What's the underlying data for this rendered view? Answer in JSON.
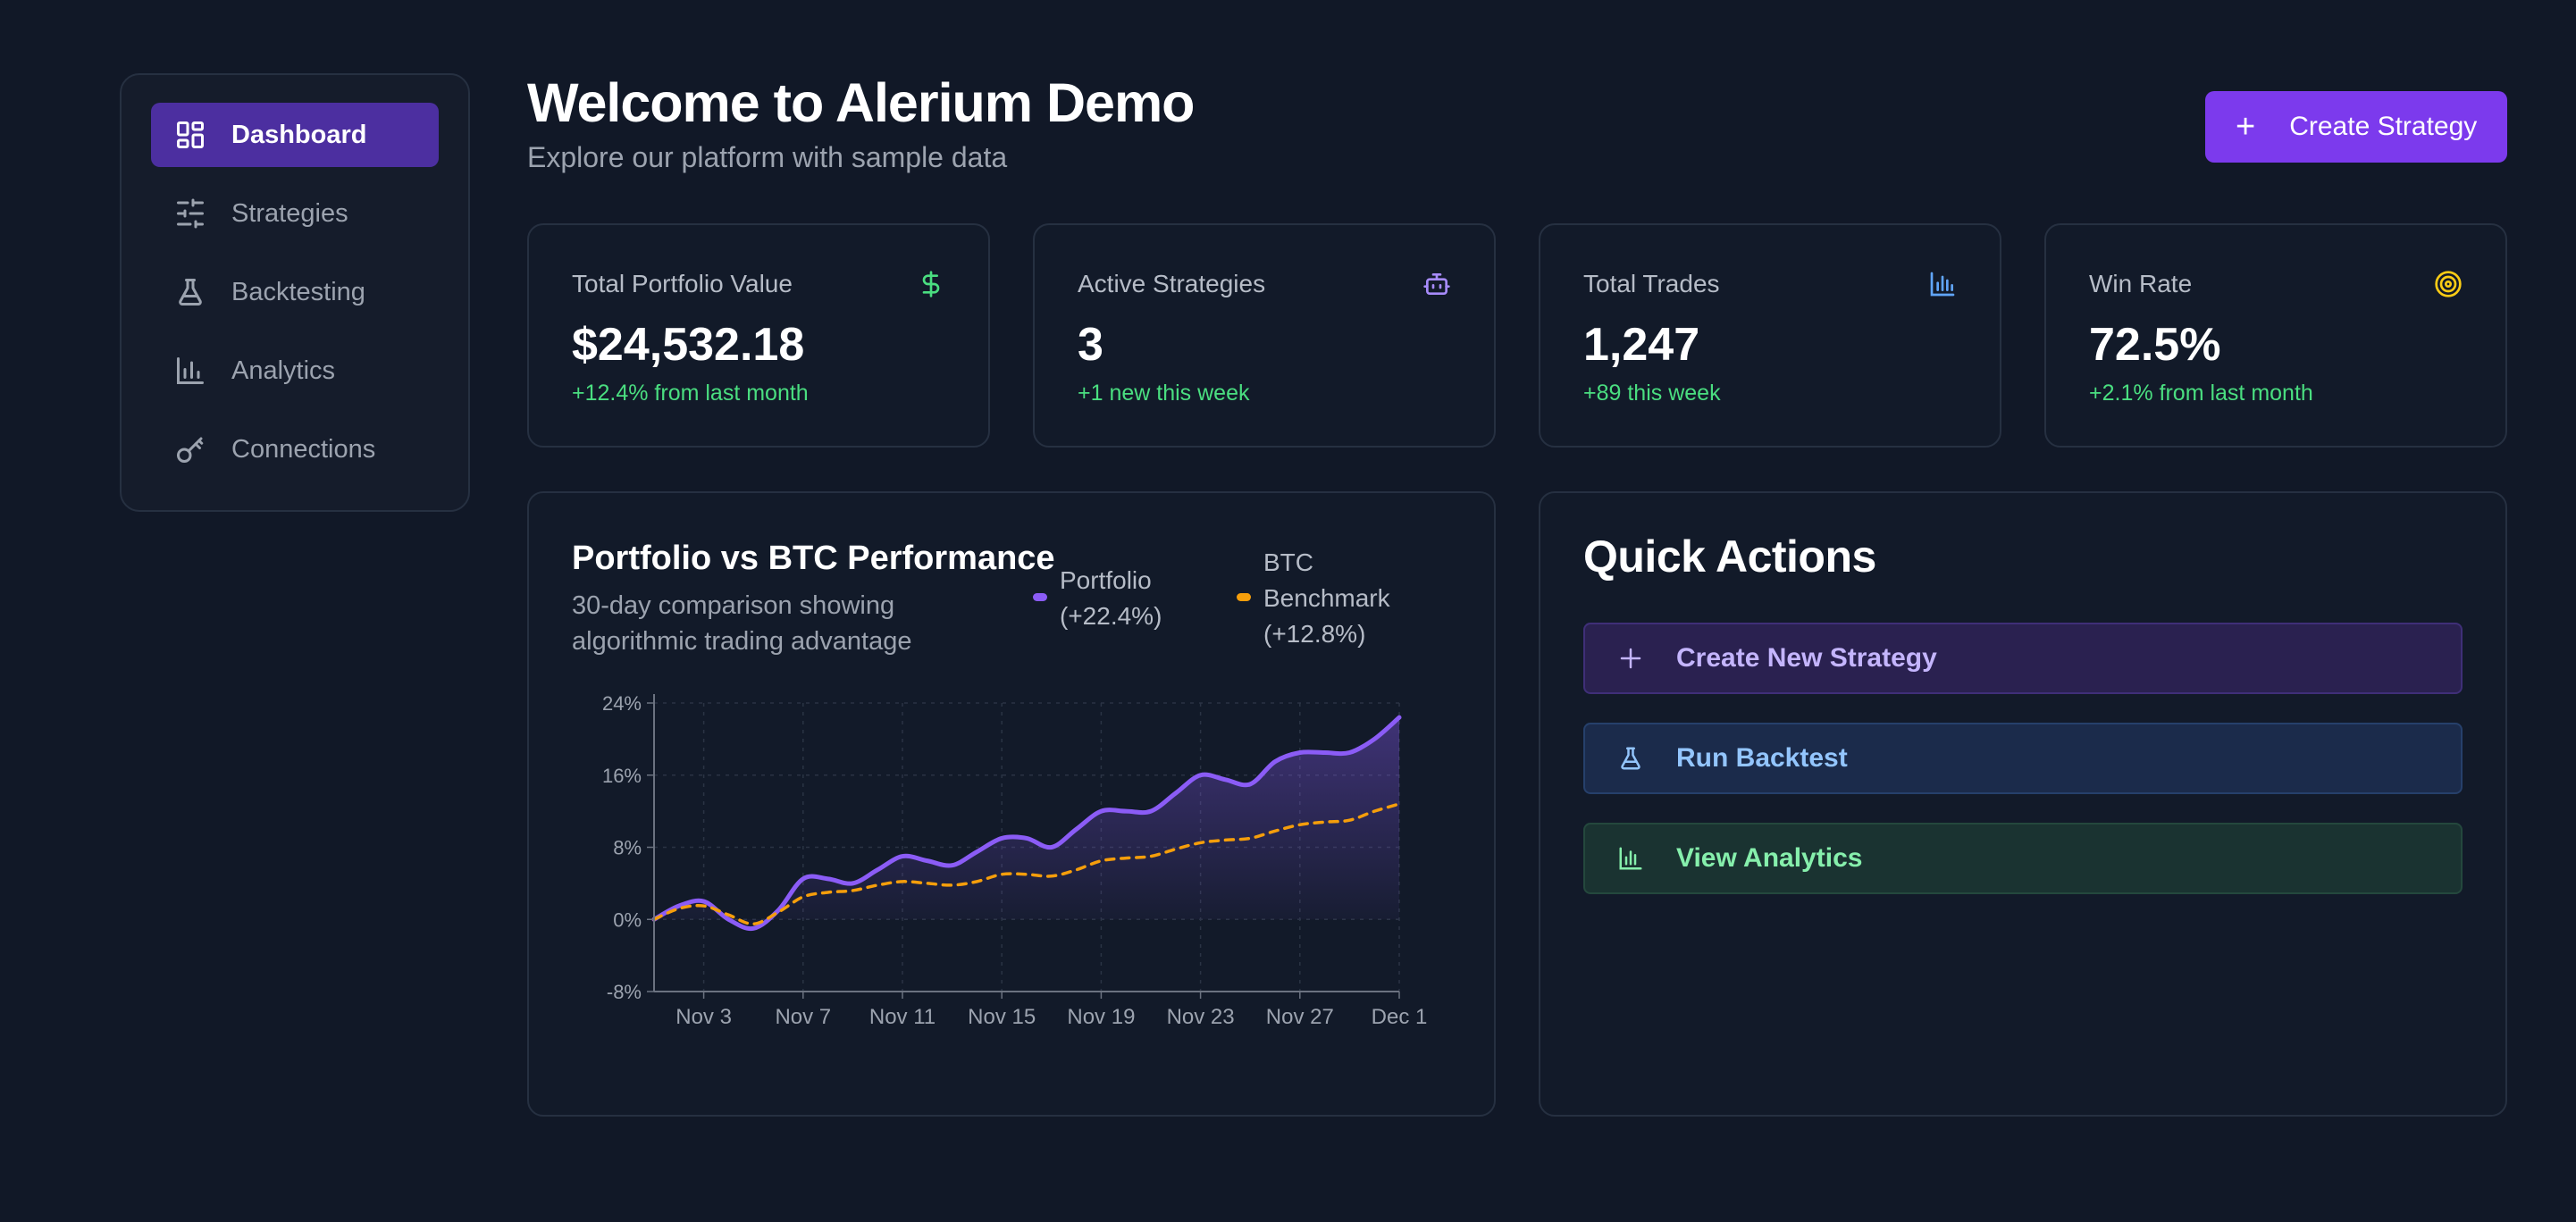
{
  "sidebar": {
    "items": [
      {
        "label": "Dashboard",
        "icon": "dashboard-icon",
        "active": true
      },
      {
        "label": "Strategies",
        "icon": "sliders-icon",
        "active": false
      },
      {
        "label": "Backtesting",
        "icon": "flask-icon",
        "active": false
      },
      {
        "label": "Analytics",
        "icon": "bar-chart-icon",
        "active": false
      },
      {
        "label": "Connections",
        "icon": "key-icon",
        "active": false
      }
    ]
  },
  "header": {
    "title": "Welcome to Alerium Demo",
    "subtitle": "Explore our platform with sample data",
    "create_button": "Create Strategy"
  },
  "stats": [
    {
      "label": "Total Portfolio Value",
      "value": "$24,532.18",
      "delta": "+12.4% from last month",
      "icon": "dollar-icon",
      "icon_color": "#4ade80"
    },
    {
      "label": "Active Strategies",
      "value": "3",
      "delta": "+1 new this week",
      "icon": "bot-icon",
      "icon_color": "#a78bfa"
    },
    {
      "label": "Total Trades",
      "value": "1,247",
      "delta": "+89 this week",
      "icon": "bar-chart-icon",
      "icon_color": "#60a5fa"
    },
    {
      "label": "Win Rate",
      "value": "72.5%",
      "delta": "+2.1% from last month",
      "icon": "target-icon",
      "icon_color": "#facc15"
    }
  ],
  "chart_card": {
    "title": "Portfolio vs BTC Performance",
    "subtitle": "30-day comparison showing algorithmic trading advantage",
    "legend": [
      {
        "label": "Portfolio (+22.4%)",
        "color": "#8b5cf6"
      },
      {
        "label": "BTC Benchmark (+12.8%)",
        "color": "#f59e0b"
      }
    ]
  },
  "chart_data": {
    "type": "area",
    "xlabel": "",
    "ylabel": "",
    "x_ticks": [
      "Nov 3",
      "Nov 7",
      "Nov 11",
      "Nov 15",
      "Nov 19",
      "Nov 23",
      "Nov 27",
      "Dec 1"
    ],
    "y_ticks": [
      "24%",
      "16%",
      "8%",
      "0%",
      "-8%"
    ],
    "ylim": [
      -8,
      24
    ],
    "x": [
      "Nov 1",
      "Nov 2",
      "Nov 3",
      "Nov 4",
      "Nov 5",
      "Nov 6",
      "Nov 7",
      "Nov 8",
      "Nov 9",
      "Nov 10",
      "Nov 11",
      "Nov 12",
      "Nov 13",
      "Nov 14",
      "Nov 15",
      "Nov 16",
      "Nov 17",
      "Nov 18",
      "Nov 19",
      "Nov 20",
      "Nov 21",
      "Nov 22",
      "Nov 23",
      "Nov 24",
      "Nov 25",
      "Nov 26",
      "Nov 27",
      "Nov 28",
      "Nov 29",
      "Nov 30",
      "Dec 1"
    ],
    "series": [
      {
        "name": "Portfolio (+22.4%)",
        "color": "#8b5cf6",
        "style": "solid-area",
        "values": [
          0,
          1.5,
          2,
          0,
          -1,
          1,
          4.5,
          4.5,
          4,
          5.5,
          7,
          6.5,
          6,
          7.5,
          9,
          9,
          8,
          10,
          12,
          12,
          12,
          14,
          16,
          15.5,
          15,
          17.5,
          18.5,
          18.5,
          18.5,
          20,
          22.4
        ]
      },
      {
        "name": "BTC Benchmark (+12.8%)",
        "color": "#f59e0b",
        "style": "dashed",
        "values": [
          0,
          1.2,
          1.5,
          0.5,
          -0.5,
          0.8,
          2.5,
          3,
          3.2,
          3.8,
          4.2,
          4,
          3.8,
          4.2,
          5,
          5,
          4.8,
          5.5,
          6.5,
          6.8,
          7,
          7.8,
          8.5,
          8.8,
          9,
          9.8,
          10.5,
          10.8,
          11,
          12,
          12.8
        ]
      }
    ],
    "grid": true,
    "legend_position": "top-right"
  },
  "quick_actions": {
    "title": "Quick Actions",
    "buttons": [
      {
        "label": "Create New Strategy",
        "icon": "plus-icon"
      },
      {
        "label": "Run Backtest",
        "icon": "flask-icon"
      },
      {
        "label": "View Analytics",
        "icon": "bar-chart-icon"
      }
    ]
  }
}
